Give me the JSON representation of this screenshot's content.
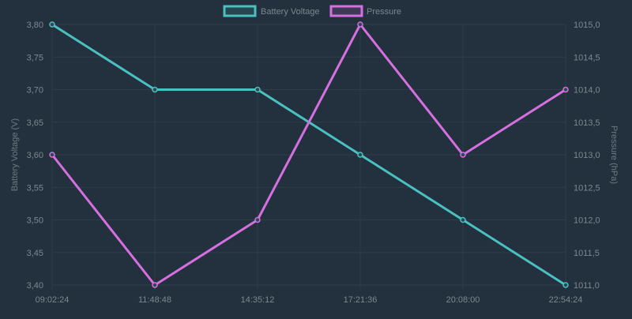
{
  "chart_data": {
    "type": "line",
    "categories": [
      "09:02:24",
      "11:48:48",
      "14:35:12",
      "17:21:36",
      "20:08:00",
      "22:54:24"
    ],
    "legend_position": "top",
    "grid": true,
    "background": "#22313d",
    "y_left": {
      "label": "Battery Voltage (V)",
      "range": [
        3.4,
        3.8
      ],
      "ticks": [
        "3,80",
        "3,75",
        "3,70",
        "3,65",
        "3,60",
        "3,55",
        "3,50",
        "3,45",
        "3,40"
      ],
      "tick_values": [
        3.8,
        3.75,
        3.7,
        3.65,
        3.6,
        3.55,
        3.5,
        3.45,
        3.4
      ]
    },
    "y_right": {
      "label": "Pressure (hPa)",
      "range": [
        1011.0,
        1015.0
      ],
      "ticks": [
        "1015,0",
        "1014,5",
        "1014,0",
        "1013,5",
        "1013,0",
        "1012,5",
        "1012,0",
        "1011,5",
        "1011,0"
      ],
      "tick_values": [
        1015.0,
        1014.5,
        1014.0,
        1013.5,
        1013.0,
        1012.5,
        1012.0,
        1011.5,
        1011.0
      ]
    },
    "series": [
      {
        "name": "Battery Voltage",
        "axis": "left",
        "color": "#4bc0c0",
        "values": [
          3.8,
          3.7,
          3.7,
          3.6,
          3.5,
          3.4
        ]
      },
      {
        "name": "Pressure",
        "axis": "right",
        "color": "#d66fdf",
        "values": [
          1013.0,
          1011.0,
          1012.0,
          1015.0,
          1013.0,
          1014.0
        ]
      }
    ]
  }
}
